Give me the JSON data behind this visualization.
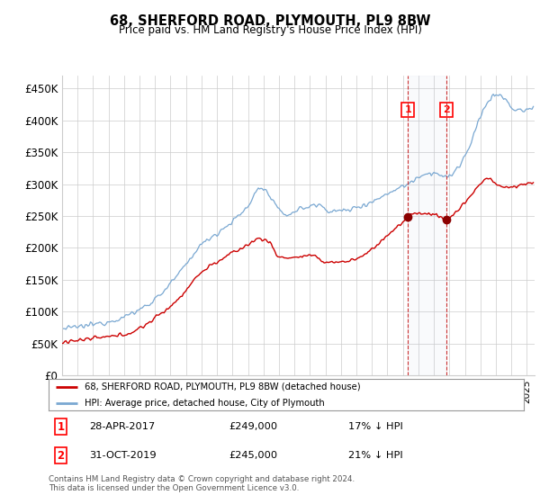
{
  "title": "68, SHERFORD ROAD, PLYMOUTH, PL9 8BW",
  "subtitle": "Price paid vs. HM Land Registry's House Price Index (HPI)",
  "ylim": [
    0,
    470000
  ],
  "yticks": [
    0,
    50000,
    100000,
    150000,
    200000,
    250000,
    300000,
    350000,
    400000,
    450000
  ],
  "ytick_labels": [
    "£0",
    "£50K",
    "£100K",
    "£150K",
    "£200K",
    "£250K",
    "£300K",
    "£350K",
    "£400K",
    "£450K"
  ],
  "xlim_start": 1995.0,
  "xlim_end": 2025.5,
  "sale1_x": 2017.33,
  "sale1_y": 249000,
  "sale1_date": "28-APR-2017",
  "sale1_price": "£249,000",
  "sale1_hpi": "17% ↓ HPI",
  "sale2_x": 2019.83,
  "sale2_y": 245000,
  "sale2_date": "31-OCT-2019",
  "sale2_price": "£245,000",
  "sale2_hpi": "21% ↓ HPI",
  "red_line_color": "#cc0000",
  "blue_line_color": "#7aa8d2",
  "sale_dot_color": "#8b0000",
  "legend1": "68, SHERFORD ROAD, PLYMOUTH, PL9 8BW (detached house)",
  "legend2": "HPI: Average price, detached house, City of Plymouth",
  "footer": "Contains HM Land Registry data © Crown copyright and database right 2024.\nThis data is licensed under the Open Government Licence v3.0.",
  "background_color": "#ffffff",
  "plot_bg_color": "#ffffff"
}
